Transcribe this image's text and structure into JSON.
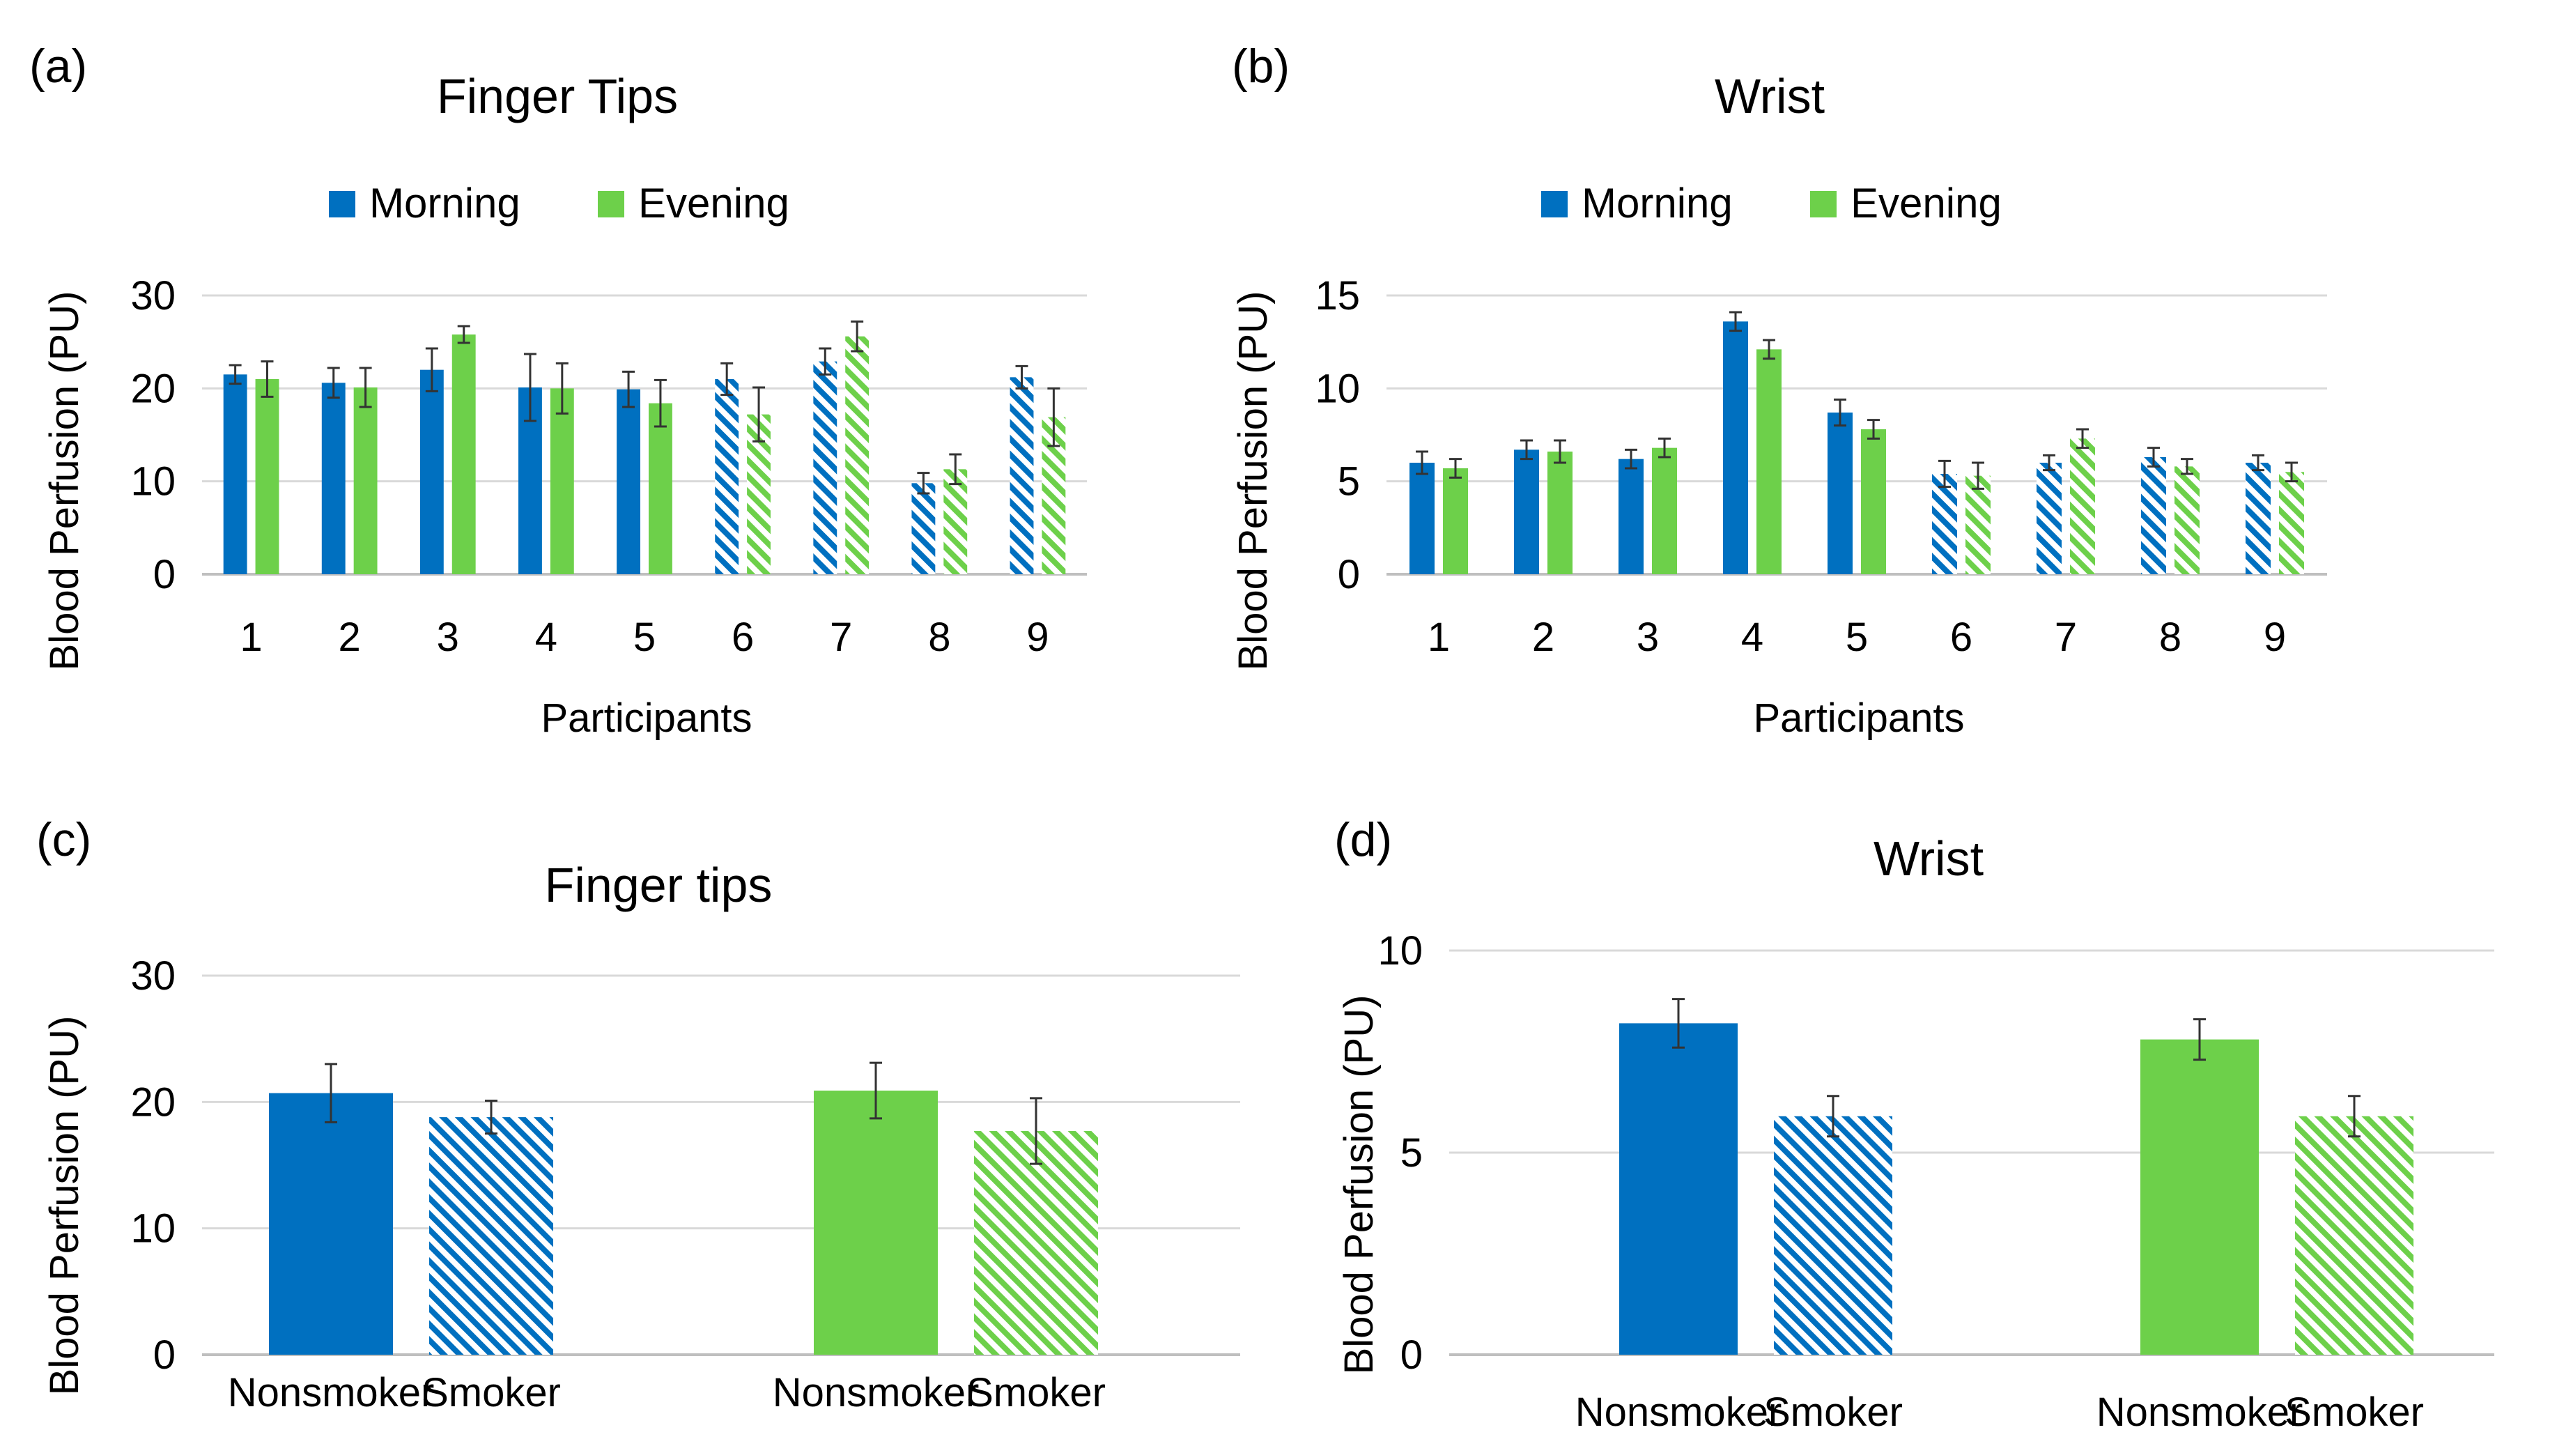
{
  "colors": {
    "morning": "#0070C0",
    "evening": "#6DD04A",
    "grid": "#D9D9D9",
    "axis": "#BFBFBF",
    "error": "#333333"
  },
  "chart_data": [
    {
      "panel": "(a)",
      "type": "bar",
      "title": "Finger Tips",
      "xlabel": "Participants",
      "ylabel": "Blood Perfusion (PU)",
      "ylim": [
        0,
        30
      ],
      "yticks": [
        0,
        10,
        20,
        30
      ],
      "grid": true,
      "legend": "top",
      "categories": [
        "1",
        "2",
        "3",
        "4",
        "5",
        "6",
        "7",
        "8",
        "9"
      ],
      "hatched_categories": [
        "6",
        "7",
        "8",
        "9"
      ],
      "series": [
        {
          "name": "Morning",
          "values": [
            21.5,
            20.6,
            22.0,
            20.1,
            19.9,
            21.0,
            22.9,
            9.8,
            21.2
          ],
          "errors": [
            1.0,
            1.6,
            2.3,
            3.6,
            1.9,
            1.7,
            1.4,
            1.1,
            1.2
          ]
        },
        {
          "name": "Evening",
          "values": [
            21.0,
            20.1,
            25.8,
            20.0,
            18.4,
            17.2,
            25.6,
            11.3,
            16.9
          ],
          "errors": [
            1.9,
            2.1,
            0.9,
            2.7,
            2.5,
            2.9,
            1.6,
            1.6,
            3.1
          ]
        }
      ]
    },
    {
      "panel": "(b)",
      "type": "bar",
      "title": "Wrist",
      "xlabel": "Participants",
      "ylabel": "Blood Perfusion (PU)",
      "ylim": [
        0,
        15
      ],
      "yticks": [
        0,
        5,
        10,
        15
      ],
      "grid": true,
      "legend": "top",
      "categories": [
        "1",
        "2",
        "3",
        "4",
        "5",
        "6",
        "7",
        "8",
        "9"
      ],
      "hatched_categories": [
        "6",
        "7",
        "8",
        "9"
      ],
      "series": [
        {
          "name": "Morning",
          "values": [
            6.0,
            6.7,
            6.2,
            13.6,
            8.7,
            5.4,
            6.0,
            6.3,
            6.0
          ],
          "errors": [
            0.6,
            0.5,
            0.5,
            0.5,
            0.7,
            0.7,
            0.4,
            0.5,
            0.4
          ]
        },
        {
          "name": "Evening",
          "values": [
            5.7,
            6.6,
            6.8,
            12.1,
            7.8,
            5.3,
            7.3,
            5.8,
            5.5
          ],
          "errors": [
            0.5,
            0.6,
            0.5,
            0.5,
            0.5,
            0.7,
            0.5,
            0.4,
            0.5
          ]
        }
      ]
    },
    {
      "panel": "(c)",
      "type": "bar",
      "title": "Finger tips",
      "xlabel": "",
      "ylabel": "Blood Perfusion (PU)",
      "ylim": [
        0,
        30
      ],
      "yticks": [
        0,
        10,
        20,
        30
      ],
      "grid": true,
      "groups": [
        {
          "labels": [
            "Nonsmoker",
            "Smoker"
          ],
          "values": [
            20.7,
            18.8
          ],
          "errors": [
            2.3,
            1.3
          ],
          "color": "morning"
        },
        {
          "labels": [
            "Nonsmoker",
            "Smoker"
          ],
          "values": [
            20.9,
            17.7
          ],
          "errors": [
            2.2,
            2.6
          ],
          "color": "evening"
        }
      ]
    },
    {
      "panel": "(d)",
      "type": "bar",
      "title": "Wrist",
      "xlabel": "",
      "ylabel": "Blood Perfusion (PU)",
      "ylim": [
        0,
        10
      ],
      "yticks": [
        0,
        5,
        10
      ],
      "grid": true,
      "groups": [
        {
          "labels": [
            "Nonsmoker",
            "Smoker"
          ],
          "values": [
            8.2,
            5.9
          ],
          "errors": [
            0.6,
            0.5
          ],
          "color": "morning"
        },
        {
          "labels": [
            "Nonsmoker",
            "Smoker"
          ],
          "values": [
            7.8,
            5.9
          ],
          "errors": [
            0.5,
            0.5
          ],
          "color": "evening"
        }
      ]
    }
  ]
}
